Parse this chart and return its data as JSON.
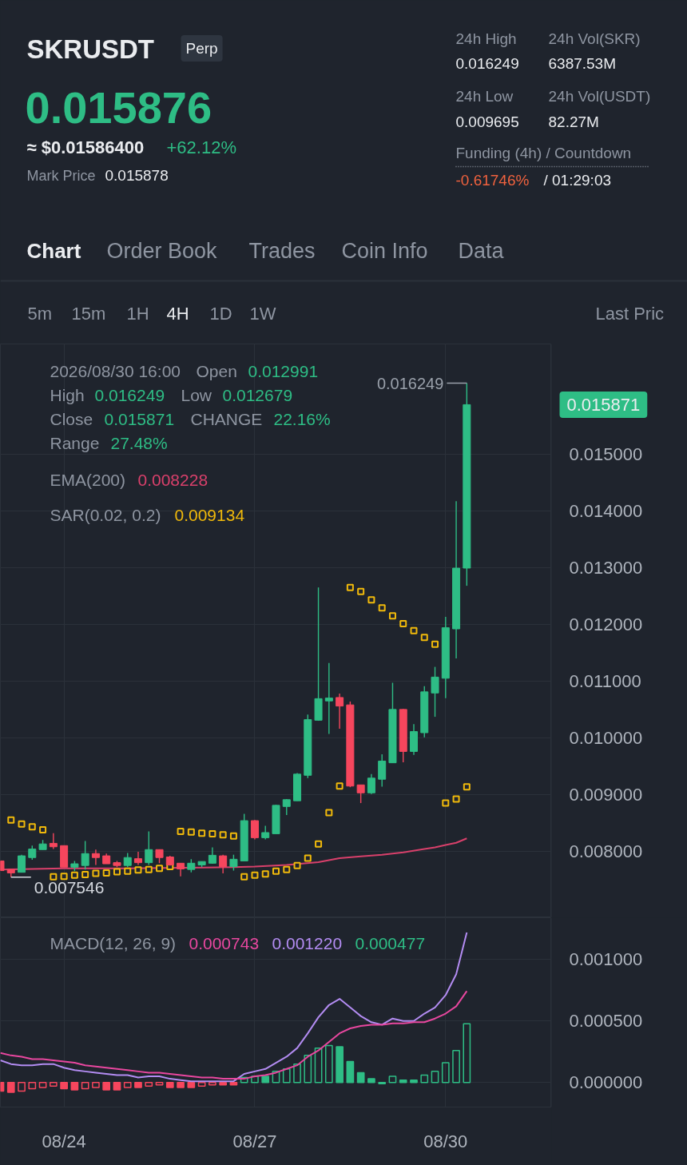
{
  "chart_data": [
    {
      "type": "other",
      "title": "SKRUSDT",
      "annotations": [
        "Perp",
        "0.015876",
        "≈ $0.01586400",
        "+62.12%",
        "Mark Price",
        "0.015878",
        "24h High",
        "0.016249",
        "24h Vol(SKR)",
        "6387.53M",
        "24h Low",
        "0.009695",
        "24h Vol(USDT)",
        "82.27M",
        "Funding (4h) / Countdown",
        "-0.61746%",
        "/ 01:29:03",
        "Chart",
        "Order Book",
        "Trades",
        "Coin Info",
        "Data",
        "5m",
        "15m",
        "1H",
        "4H",
        "1D",
        "1W",
        "Last Pric"
      ]
    },
    {
      "type": "candlestick",
      "x": [
        "2026-08-23T00:00",
        "2026-08-23T04:00",
        "2026-08-23T08:00",
        "2026-08-23T12:00",
        "2026-08-23T16:00",
        "2026-08-23T20:00",
        "2026-08-24T00:00",
        "2026-08-24T04:00",
        "2026-08-24T08:00",
        "2026-08-24T12:00",
        "2026-08-24T16:00",
        "2026-08-24T20:00",
        "2026-08-25T00:00",
        "2026-08-25T04:00",
        "2026-08-25T08:00",
        "2026-08-25T12:00",
        "2026-08-25T16:00",
        "2026-08-25T20:00",
        "2026-08-26T00:00",
        "2026-08-26T04:00",
        "2026-08-26T08:00",
        "2026-08-26T12:00",
        "2026-08-26T16:00",
        "2026-08-26T20:00",
        "2026-08-27T00:00",
        "2026-08-27T04:00",
        "2026-08-27T08:00",
        "2026-08-27T12:00",
        "2026-08-27T16:00",
        "2026-08-27T20:00",
        "2026-08-28T00:00",
        "2026-08-28T04:00",
        "2026-08-28T08:00",
        "2026-08-28T12:00",
        "2026-08-28T16:00",
        "2026-08-28T20:00",
        "2026-08-29T00:00",
        "2026-08-29T04:00",
        "2026-08-29T08:00",
        "2026-08-29T12:00",
        "2026-08-29T16:00",
        "2026-08-29T20:00",
        "2026-08-30T00:00",
        "2026-08-30T04:00",
        "2026-08-30T08:00"
      ],
      "ohlc": [
        [
          0.00783,
          0.00783,
          0.00766,
          0.00766
        ],
        [
          0.00768,
          0.00769,
          0.007546,
          0.00762
        ],
        [
          0.00763,
          0.00794,
          0.00763,
          0.00792
        ],
        [
          0.00789,
          0.0081,
          0.00785,
          0.00804
        ],
        [
          0.00803,
          0.0082,
          0.00803,
          0.00813
        ],
        [
          0.00814,
          0.00832,
          0.00804,
          0.00808
        ],
        [
          0.0081,
          0.0081,
          0.00772,
          0.00772
        ],
        [
          0.00772,
          0.00783,
          0.00765,
          0.00778
        ],
        [
          0.00775,
          0.00818,
          0.00768,
          0.00796
        ],
        [
          0.00796,
          0.00803,
          0.00776,
          0.00789
        ],
        [
          0.00792,
          0.00796,
          0.00778,
          0.00778
        ],
        [
          0.0078,
          0.00783,
          0.00772,
          0.00775
        ],
        [
          0.00775,
          0.00797,
          0.00772,
          0.00789
        ],
        [
          0.00787,
          0.00799,
          0.00776,
          0.0078
        ],
        [
          0.0078,
          0.00835,
          0.00776,
          0.00803
        ],
        [
          0.00803,
          0.00803,
          0.00779,
          0.00789
        ],
        [
          0.0079,
          0.00792,
          0.00775,
          0.00776
        ],
        [
          0.00779,
          0.00779,
          0.00756,
          0.00769
        ],
        [
          0.00768,
          0.00786,
          0.00763,
          0.00779
        ],
        [
          0.00776,
          0.00782,
          0.00772,
          0.00782
        ],
        [
          0.00779,
          0.00807,
          0.00778,
          0.00793
        ],
        [
          0.00792,
          0.00794,
          0.00761,
          0.00773
        ],
        [
          0.00773,
          0.00794,
          0.00766,
          0.00786
        ],
        [
          0.00783,
          0.00866,
          0.00783,
          0.00854
        ],
        [
          0.00854,
          0.00855,
          0.00821,
          0.00824
        ],
        [
          0.00824,
          0.00845,
          0.00821,
          0.00833
        ],
        [
          0.00831,
          0.00882,
          0.00831,
          0.00881
        ],
        [
          0.00879,
          0.00892,
          0.00864,
          0.00891
        ],
        [
          0.00889,
          0.00938,
          0.00889,
          0.00936
        ],
        [
          0.00934,
          0.01041,
          0.00929,
          0.01032
        ],
        [
          0.01031,
          0.01265,
          0.0103,
          0.01069
        ],
        [
          0.01065,
          0.01132,
          0.01007,
          0.0107
        ],
        [
          0.01071,
          0.01078,
          0.01016,
          0.01056
        ],
        [
          0.01058,
          0.01064,
          0.00913,
          0.00915
        ],
        [
          0.00917,
          0.00917,
          0.00885,
          0.00903
        ],
        [
          0.00903,
          0.00936,
          0.00901,
          0.00929
        ],
        [
          0.00927,
          0.00971,
          0.00914,
          0.00959
        ],
        [
          0.00956,
          0.01097,
          0.00956,
          0.0105
        ],
        [
          0.0105,
          0.01051,
          0.00957,
          0.00976
        ],
        [
          0.00976,
          0.01024,
          0.0097,
          0.01011
        ],
        [
          0.01009,
          0.01091,
          0.01001,
          0.01081
        ],
        [
          0.01079,
          0.01125,
          0.01037,
          0.01107
        ],
        [
          0.01105,
          0.01213,
          0.0107,
          0.01194
        ],
        [
          0.01192,
          0.01417,
          0.0114,
          0.01299
        ],
        [
          0.012991,
          0.016249,
          0.012679,
          0.015871
        ]
      ],
      "colors": [
        "#f6465d",
        "#f6465d",
        "#2ebd85",
        "#2ebd85",
        "#2ebd85",
        "#f6465d",
        "#f6465d",
        "#2ebd85",
        "#2ebd85",
        "#f6465d",
        "#f6465d",
        "#f6465d",
        "#2ebd85",
        "#f6465d",
        "#2ebd85",
        "#f6465d",
        "#f6465d",
        "#f6465d",
        "#2ebd85",
        "#2ebd85",
        "#2ebd85",
        "#f6465d",
        "#2ebd85",
        "#2ebd85",
        "#f6465d",
        "#2ebd85",
        "#2ebd85",
        "#2ebd85",
        "#2ebd85",
        "#2ebd85",
        "#2ebd85",
        "#2ebd85",
        "#f6465d",
        "#f6465d",
        "#f6465d",
        "#2ebd85",
        "#2ebd85",
        "#2ebd85",
        "#f6465d",
        "#2ebd85",
        "#2ebd85",
        "#2ebd85",
        "#2ebd85",
        "#2ebd85",
        "#2ebd85"
      ],
      "series": [
        {
          "type": "line",
          "color": "#d9406b",
          "x": [
            "2026-08-23T00:00",
            "2026-08-24T00:00",
            "2026-08-25T00:00",
            "2026-08-25T20:00",
            "2026-08-26T16:00",
            "2026-08-27T00:00",
            "2026-08-27T12:00",
            "2026-08-28T00:00",
            "2026-08-28T08:00",
            "2026-08-28T16:00",
            "2026-08-29T00:00",
            "2026-08-29T08:00",
            "2026-08-29T16:00",
            "2026-08-29T20:00",
            "2026-08-30T00:00",
            "2026-08-30T04:00",
            "2026-08-30T08:00"
          ],
          "values": [
            0.00768,
            0.0077,
            0.0077,
            0.00771,
            0.00772,
            0.00773,
            0.00776,
            0.00781,
            0.00788,
            0.00791,
            0.00794,
            0.00798,
            0.00804,
            0.00807,
            0.00811,
            0.00815,
            0.008228
          ]
        },
        {
          "type": "scatter",
          "color": "#f0b90b",
          "marker": "square",
          "values": [
            null,
            0.00855,
            0.00848,
            0.00843,
            0.00838,
            0.00755,
            0.00756,
            0.00758,
            0.00759,
            0.00761,
            0.00762,
            0.00764,
            0.00765,
            0.00767,
            0.00768,
            0.0077,
            0.00773,
            0.00835,
            0.00834,
            0.00832,
            0.00831,
            0.00829,
            0.00827,
            0.00755,
            0.00758,
            0.0076,
            0.00765,
            0.00768,
            0.00775,
            0.00788,
            0.00813,
            0.00868,
            0.00915,
            0.01265,
            0.01258,
            0.01243,
            0.01229,
            0.01215,
            0.01201,
            0.01189,
            0.01177,
            0.01165,
            0.00885,
            0.00892,
            0.009134
          ]
        }
      ],
      "xlim": [
        "2026-08-23T00:00",
        "2026-08-31T16:00"
      ],
      "xticks": [
        {
          "value": "2026-08-24T00:00",
          "label": null
        },
        {
          "value": "2026-08-27T00:00",
          "label": null
        },
        {
          "value": "2026-08-30T00:00",
          "label": null
        }
      ],
      "ylim": [
        0.00683,
        0.01694
      ],
      "yticks": [
        {
          "value": 0.008,
          "label": "0.008000"
        },
        {
          "value": 0.009,
          "label": "0.009000"
        },
        {
          "value": 0.01,
          "label": "0.010000"
        },
        {
          "value": 0.011,
          "label": "0.011000"
        },
        {
          "value": 0.012,
          "label": "0.012000"
        },
        {
          "value": 0.013,
          "label": "0.013000"
        },
        {
          "value": 0.014,
          "label": "0.014000"
        },
        {
          "value": 0.015,
          "label": "0.015000"
        }
      ],
      "tick_labels": "y",
      "grid": true,
      "annotations": [
        "2026/08/30 16:00",
        "Open",
        "0.012991",
        "High",
        "0.016249",
        "Low",
        "0.012679",
        "Close",
        "0.015871",
        "CHANGE",
        "22.16%",
        "Range",
        "27.48%",
        "EMA(200)",
        "0.008228",
        "SAR(0.02, 0.2)",
        "0.009134",
        {
          "text": "0.016249",
          "x": "2026-08-30T08:00",
          "y": 0.016249
        },
        {
          "text": "0.007546",
          "x": "2026-08-23T04:00",
          "y": 0.007546
        },
        "0.015871"
      ]
    },
    {
      "type": "bar",
      "x": [
        "2026-08-23T00:00",
        "2026-08-23T04:00",
        "2026-08-23T08:00",
        "2026-08-23T12:00",
        "2026-08-23T16:00",
        "2026-08-23T20:00",
        "2026-08-24T00:00",
        "2026-08-24T04:00",
        "2026-08-24T08:00",
        "2026-08-24T12:00",
        "2026-08-24T16:00",
        "2026-08-24T20:00",
        "2026-08-25T00:00",
        "2026-08-25T04:00",
        "2026-08-25T08:00",
        "2026-08-25T12:00",
        "2026-08-25T16:00",
        "2026-08-25T20:00",
        "2026-08-26T00:00",
        "2026-08-26T04:00",
        "2026-08-26T08:00",
        "2026-08-26T12:00",
        "2026-08-26T16:00",
        "2026-08-26T20:00",
        "2026-08-27T00:00",
        "2026-08-27T04:00",
        "2026-08-27T08:00",
        "2026-08-27T12:00",
        "2026-08-27T16:00",
        "2026-08-27T20:00",
        "2026-08-28T00:00",
        "2026-08-28T04:00",
        "2026-08-28T08:00",
        "2026-08-28T12:00",
        "2026-08-28T16:00",
        "2026-08-28T20:00",
        "2026-08-29T00:00",
        "2026-08-29T04:00",
        "2026-08-29T08:00",
        "2026-08-29T12:00",
        "2026-08-29T16:00",
        "2026-08-29T20:00",
        "2026-08-30T00:00",
        "2026-08-30T04:00",
        "2026-08-30T08:00"
      ],
      "series": [
        {
          "type": "bar",
          "colors": [
            "#f6465d",
            "#f6465d",
            "#f6465d",
            "#f6465d",
            "#f6465d",
            "#f6465d",
            "#f6465d",
            "#f6465d",
            "#f6465d",
            "#f6465d",
            "#f6465d",
            "#f6465d",
            "#f6465d",
            "#f6465d",
            "#f6465d",
            "#f6465d",
            "#f6465d",
            "#f6465d",
            "#f6465d",
            "#f6465d",
            "#f6465d",
            "#f6465d",
            "#f6465d",
            "#2ebd85",
            "#2ebd85",
            "#2ebd85",
            "#2ebd85",
            "#2ebd85",
            "#2ebd85",
            "#2ebd85",
            "#2ebd85",
            "#2ebd85",
            "#2ebd85",
            "#2ebd85",
            "#2ebd85",
            "#2ebd85",
            "#2ebd85",
            "#2ebd85",
            "#2ebd85",
            "#2ebd85",
            "#2ebd85",
            "#2ebd85",
            "#2ebd85",
            "#2ebd85",
            "#2ebd85"
          ],
          "values": [
            -7e-05,
            -8e-05,
            -7e-05,
            -5e-05,
            -4e-05,
            -3e-05,
            -5e-05,
            -6e-05,
            -5e-05,
            -4e-05,
            -6e-05,
            -6e-05,
            -4e-05,
            -4e-05,
            -3e-05,
            -2e-05,
            -4e-05,
            -4e-05,
            -4e-05,
            -3e-05,
            -2e-05,
            -2e-05,
            -2e-05,
            4e-05,
            5e-05,
            5e-05,
            9e-05,
            0.00011,
            0.00015,
            0.00022,
            0.00028,
            0.0003,
            0.00029,
            0.00017,
            8e-05,
            3e-05,
            -1e-05,
            5e-05,
            2e-05,
            2e-05,
            6e-05,
            9e-05,
            0.00016,
            0.00026,
            0.000477
          ]
        },
        {
          "type": "line",
          "color": "#b38cf2",
          "values": [
            0.00018,
            0.00015,
            0.00014,
            0.00014,
            0.00015,
            0.00015,
            0.00012,
            0.0001,
            9e-05,
            8e-05,
            7e-05,
            6e-05,
            6e-05,
            4e-05,
            5e-05,
            5e-05,
            3e-05,
            2e-05,
            1e-05,
            1e-05,
            1e-05,
            1e-05,
            1e-05,
            7e-05,
            9e-05,
            0.00011,
            0.00016,
            0.00021,
            0.00028,
            0.0004,
            0.00053,
            0.00063,
            0.00068,
            0.00061,
            0.00054,
            0.00049,
            0.00047,
            0.00052,
            0.0005,
            0.0005,
            0.00056,
            0.00061,
            0.00071,
            0.00088,
            0.00122
          ]
        },
        {
          "type": "line",
          "color": "#e8479f",
          "values": [
            0.00024,
            0.00022,
            0.00021,
            0.00019,
            0.00019,
            0.00018,
            0.00017,
            0.00016,
            0.00014,
            0.00013,
            0.00012,
            0.00011,
            0.0001,
            9e-05,
            8e-05,
            8e-05,
            7e-05,
            6e-05,
            5e-05,
            4e-05,
            4e-05,
            3e-05,
            3e-05,
            3e-05,
            5e-05,
            6e-05,
            8e-05,
            0.00011,
            0.00014,
            0.00021,
            0.00026,
            0.00033,
            0.0004,
            0.00044,
            0.00046,
            0.00047,
            0.00047,
            0.00048,
            0.00048,
            0.00049,
            0.00049,
            0.00052,
            0.00056,
            0.00062,
            0.000743
          ]
        }
      ],
      "xlim": [
        "2026-08-23T00:00",
        "2026-08-31T16:00"
      ],
      "xticks": [
        {
          "value": "2026-08-24T00:00",
          "label": "08/24"
        },
        {
          "value": "2026-08-27T00:00",
          "label": "08/27"
        },
        {
          "value": "2026-08-30T00:00",
          "label": "08/30"
        }
      ],
      "ylim": [
        -0.0002,
        0.00134
      ],
      "yticks": [
        {
          "value": 0,
          "label": "0.000000"
        },
        {
          "value": 0.0005,
          "label": "0.000500"
        },
        {
          "value": 0.001,
          "label": "0.001000"
        }
      ],
      "grid": true,
      "annotations": [
        "MACD(12, 26, 9)",
        "0.000743",
        "0.001220",
        "0.000477"
      ]
    }
  ]
}
